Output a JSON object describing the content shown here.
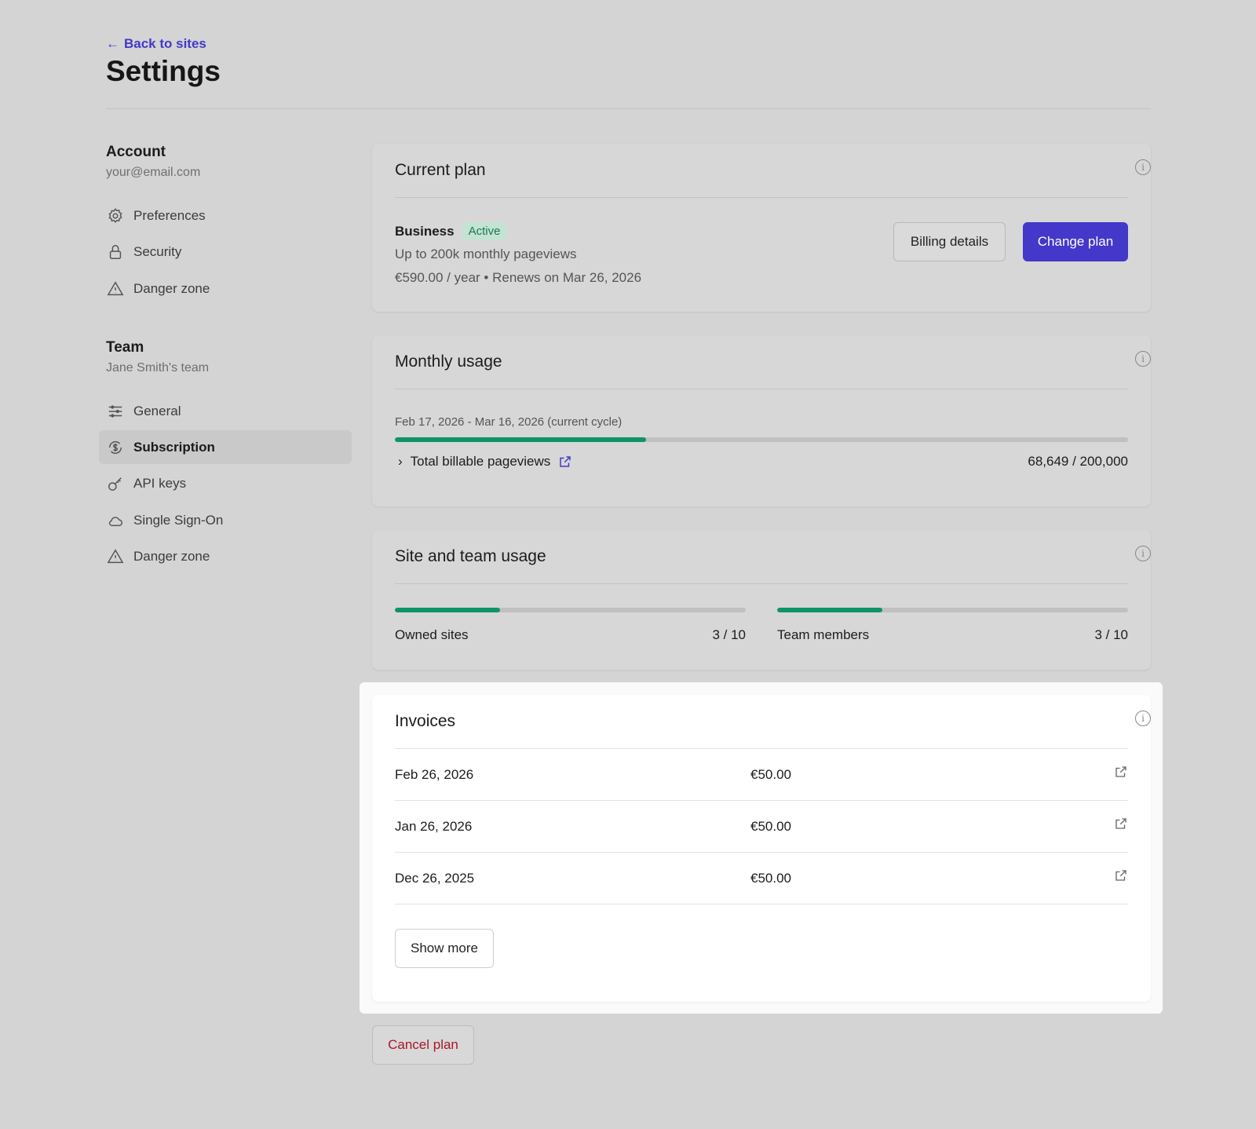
{
  "header": {
    "back_label": "Back to sites",
    "title": "Settings"
  },
  "sidebar": {
    "account": {
      "heading": "Account",
      "email": "your@email.com",
      "items": [
        {
          "label": "Preferences",
          "icon": "gear-icon"
        },
        {
          "label": "Security",
          "icon": "lock-icon"
        },
        {
          "label": "Danger zone",
          "icon": "warning-icon"
        }
      ]
    },
    "team": {
      "heading": "Team",
      "name": "Jane Smith's team",
      "items": [
        {
          "label": "General",
          "icon": "sliders-icon"
        },
        {
          "label": "Subscription",
          "icon": "dollar-cycle-icon",
          "active": true
        },
        {
          "label": "API keys",
          "icon": "key-icon"
        },
        {
          "label": "Single Sign-On",
          "icon": "cloud-icon"
        },
        {
          "label": "Danger zone",
          "icon": "warning-icon"
        }
      ]
    }
  },
  "current_plan": {
    "title": "Current plan",
    "plan": "Business",
    "status": "Active",
    "limit": "Up to 200k monthly pageviews",
    "price": "€590.00 / year • Renews on Mar 26, 2026",
    "billing_label": "Billing details",
    "change_label": "Change plan"
  },
  "monthly_usage": {
    "title": "Monthly usage",
    "cycle": "Feb 17, 2026 - Mar 16, 2026 (current cycle)",
    "metric_label": "Total billable pageviews",
    "value": "68,649 / 200,000",
    "progress": 0.343
  },
  "site_usage": {
    "title": "Site and team usage",
    "sites": {
      "label": "Owned sites",
      "value": "3 / 10",
      "progress": 0.3
    },
    "members": {
      "label": "Team members",
      "value": "3 / 10",
      "progress": 0.3
    }
  },
  "invoices": {
    "title": "Invoices",
    "rows": [
      {
        "date": "Feb 26, 2026",
        "amount": "€50.00"
      },
      {
        "date": "Jan 26, 2026",
        "amount": "€50.00"
      },
      {
        "date": "Dec 26, 2025",
        "amount": "€50.00"
      }
    ],
    "show_more_label": "Show more"
  },
  "cancel_label": "Cancel plan",
  "colors": {
    "accent": "#4338ca",
    "progress": "#0e9467",
    "danger": "#a8162a",
    "badge_bg": "#c4e3d2"
  }
}
